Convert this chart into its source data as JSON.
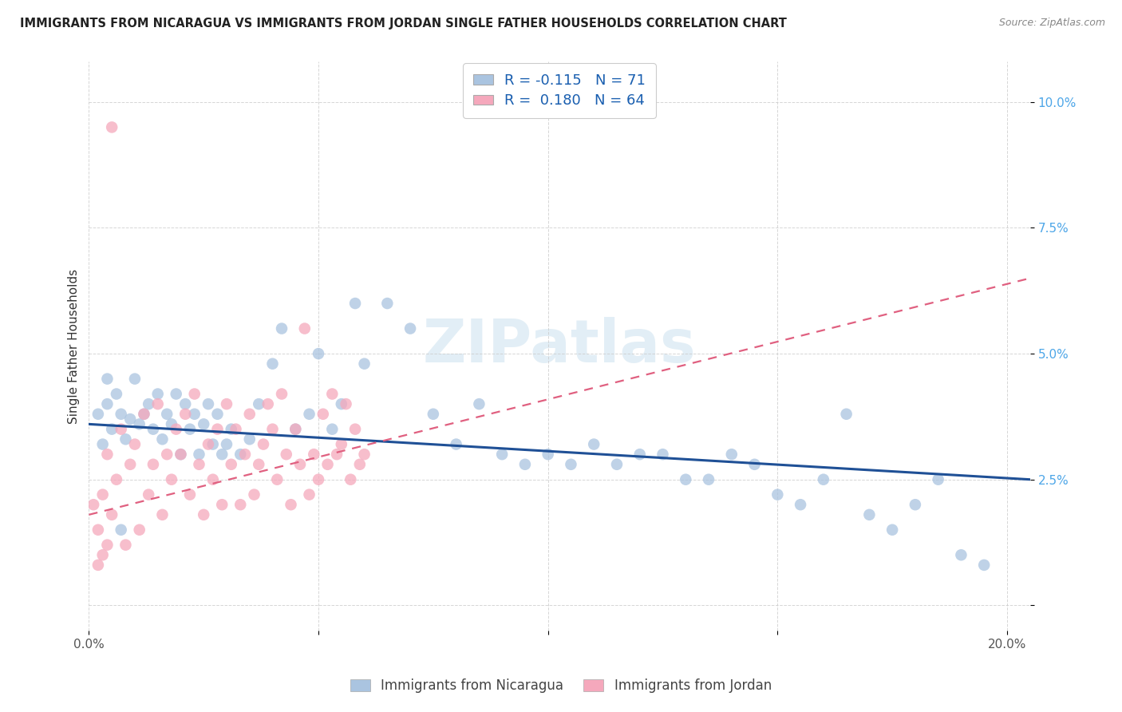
{
  "title": "IMMIGRANTS FROM NICARAGUA VS IMMIGRANTS FROM JORDAN SINGLE FATHER HOUSEHOLDS CORRELATION CHART",
  "source": "Source: ZipAtlas.com",
  "ylabel": "Single Father Households",
  "xlim": [
    0.0,
    0.205
  ],
  "ylim": [
    -0.005,
    0.108
  ],
  "yticks": [
    0.0,
    0.025,
    0.05,
    0.075,
    0.1
  ],
  "ytick_labels": [
    "",
    "2.5%",
    "5.0%",
    "7.5%",
    "10.0%"
  ],
  "xticks": [
    0.0,
    0.05,
    0.1,
    0.15,
    0.2
  ],
  "xtick_labels": [
    "0.0%",
    "",
    "",
    "",
    "20.0%"
  ],
  "nicaragua_color": "#aac4e0",
  "jordan_color": "#f5a8bc",
  "nicaragua_line_color": "#1f5096",
  "jordan_line_color": "#e06080",
  "R_nicaragua": -0.115,
  "N_nicaragua": 71,
  "R_jordan": 0.18,
  "N_jordan": 64,
  "background_color": "#ffffff",
  "watermark": "ZIPatlas",
  "nicaragua_scatter_x": [
    0.002,
    0.003,
    0.004,
    0.005,
    0.006,
    0.007,
    0.008,
    0.009,
    0.01,
    0.011,
    0.012,
    0.013,
    0.014,
    0.015,
    0.016,
    0.017,
    0.018,
    0.019,
    0.02,
    0.021,
    0.022,
    0.023,
    0.024,
    0.025,
    0.026,
    0.027,
    0.028,
    0.029,
    0.03,
    0.031,
    0.033,
    0.035,
    0.037,
    0.04,
    0.042,
    0.045,
    0.048,
    0.05,
    0.053,
    0.055,
    0.058,
    0.06,
    0.065,
    0.07,
    0.075,
    0.08,
    0.085,
    0.09,
    0.095,
    0.1,
    0.105,
    0.11,
    0.115,
    0.12,
    0.125,
    0.13,
    0.135,
    0.14,
    0.145,
    0.15,
    0.155,
    0.16,
    0.165,
    0.17,
    0.175,
    0.18,
    0.185,
    0.19,
    0.195,
    0.004,
    0.007
  ],
  "nicaragua_scatter_y": [
    0.038,
    0.032,
    0.04,
    0.035,
    0.042,
    0.038,
    0.033,
    0.037,
    0.045,
    0.036,
    0.038,
    0.04,
    0.035,
    0.042,
    0.033,
    0.038,
    0.036,
    0.042,
    0.03,
    0.04,
    0.035,
    0.038,
    0.03,
    0.036,
    0.04,
    0.032,
    0.038,
    0.03,
    0.032,
    0.035,
    0.03,
    0.033,
    0.04,
    0.048,
    0.055,
    0.035,
    0.038,
    0.05,
    0.035,
    0.04,
    0.06,
    0.048,
    0.06,
    0.055,
    0.038,
    0.032,
    0.04,
    0.03,
    0.028,
    0.03,
    0.028,
    0.032,
    0.028,
    0.03,
    0.03,
    0.025,
    0.025,
    0.03,
    0.028,
    0.022,
    0.02,
    0.025,
    0.038,
    0.018,
    0.015,
    0.02,
    0.025,
    0.01,
    0.008,
    0.045,
    0.015
  ],
  "jordan_scatter_x": [
    0.001,
    0.002,
    0.003,
    0.004,
    0.005,
    0.006,
    0.007,
    0.008,
    0.009,
    0.01,
    0.011,
    0.012,
    0.013,
    0.014,
    0.015,
    0.016,
    0.017,
    0.018,
    0.019,
    0.02,
    0.021,
    0.022,
    0.023,
    0.024,
    0.025,
    0.026,
    0.027,
    0.028,
    0.029,
    0.03,
    0.031,
    0.032,
    0.033,
    0.034,
    0.035,
    0.036,
    0.037,
    0.038,
    0.039,
    0.04,
    0.041,
    0.042,
    0.043,
    0.044,
    0.045,
    0.046,
    0.047,
    0.048,
    0.049,
    0.05,
    0.051,
    0.052,
    0.053,
    0.054,
    0.055,
    0.056,
    0.057,
    0.058,
    0.059,
    0.06,
    0.002,
    0.003,
    0.004,
    0.005
  ],
  "jordan_scatter_y": [
    0.02,
    0.015,
    0.022,
    0.03,
    0.018,
    0.025,
    0.035,
    0.012,
    0.028,
    0.032,
    0.015,
    0.038,
    0.022,
    0.028,
    0.04,
    0.018,
    0.03,
    0.025,
    0.035,
    0.03,
    0.038,
    0.022,
    0.042,
    0.028,
    0.018,
    0.032,
    0.025,
    0.035,
    0.02,
    0.04,
    0.028,
    0.035,
    0.02,
    0.03,
    0.038,
    0.022,
    0.028,
    0.032,
    0.04,
    0.035,
    0.025,
    0.042,
    0.03,
    0.02,
    0.035,
    0.028,
    0.055,
    0.022,
    0.03,
    0.025,
    0.038,
    0.028,
    0.042,
    0.03,
    0.032,
    0.04,
    0.025,
    0.035,
    0.028,
    0.03,
    0.008,
    0.01,
    0.012,
    0.095
  ],
  "nic_line_x0": 0.0,
  "nic_line_x1": 0.205,
  "nic_line_y0": 0.036,
  "nic_line_y1": 0.025,
  "jor_line_x0": 0.0,
  "jor_line_x1": 0.205,
  "jor_line_y0": 0.018,
  "jor_line_y1": 0.065
}
